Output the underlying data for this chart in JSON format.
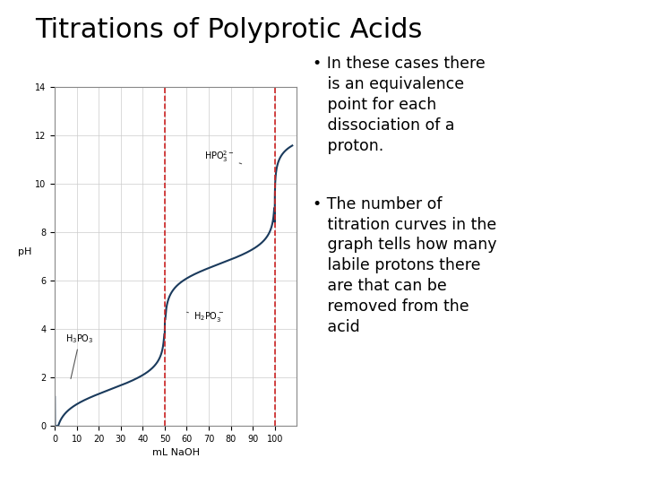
{
  "title": "Titrations of Polyprotic Acids",
  "title_fontsize": 22,
  "bullet1_line1": "In these cases there",
  "bullet1_line2": "is an equivalence",
  "bullet1_line3": "point for each",
  "bullet1_line4": "dissociation of a",
  "bullet1_line5": "proton.",
  "bullet2_line1": "The number of",
  "bullet2_line2": "titration curves in the",
  "bullet2_line3": "graph tells how many",
  "bullet2_line4": "labile protons there",
  "bullet2_line5": "are that can be",
  "bullet2_line6": "removed from the",
  "bullet2_line7": "acid",
  "xlabel": "mL NaOH",
  "ylabel": "pH",
  "xlim": [
    0,
    110
  ],
  "ylim": [
    0,
    14
  ],
  "xticks": [
    0,
    10,
    20,
    30,
    40,
    50,
    60,
    70,
    80,
    90,
    100
  ],
  "yticks": [
    0,
    2,
    4,
    6,
    8,
    10,
    12,
    14
  ],
  "curve_color": "#1a3a5c",
  "dashed_color": "#cc2222",
  "eq1_x": 50,
  "eq2_x": 100,
  "background_color": "#ffffff",
  "text_color": "#000000",
  "font_size_axis_labels": 8,
  "font_size_bullets": 12.5,
  "font_size_annot": 7,
  "pKa1": 1.5,
  "pKa2": 6.7,
  "eq1": 50.0,
  "eq2": 100.0
}
